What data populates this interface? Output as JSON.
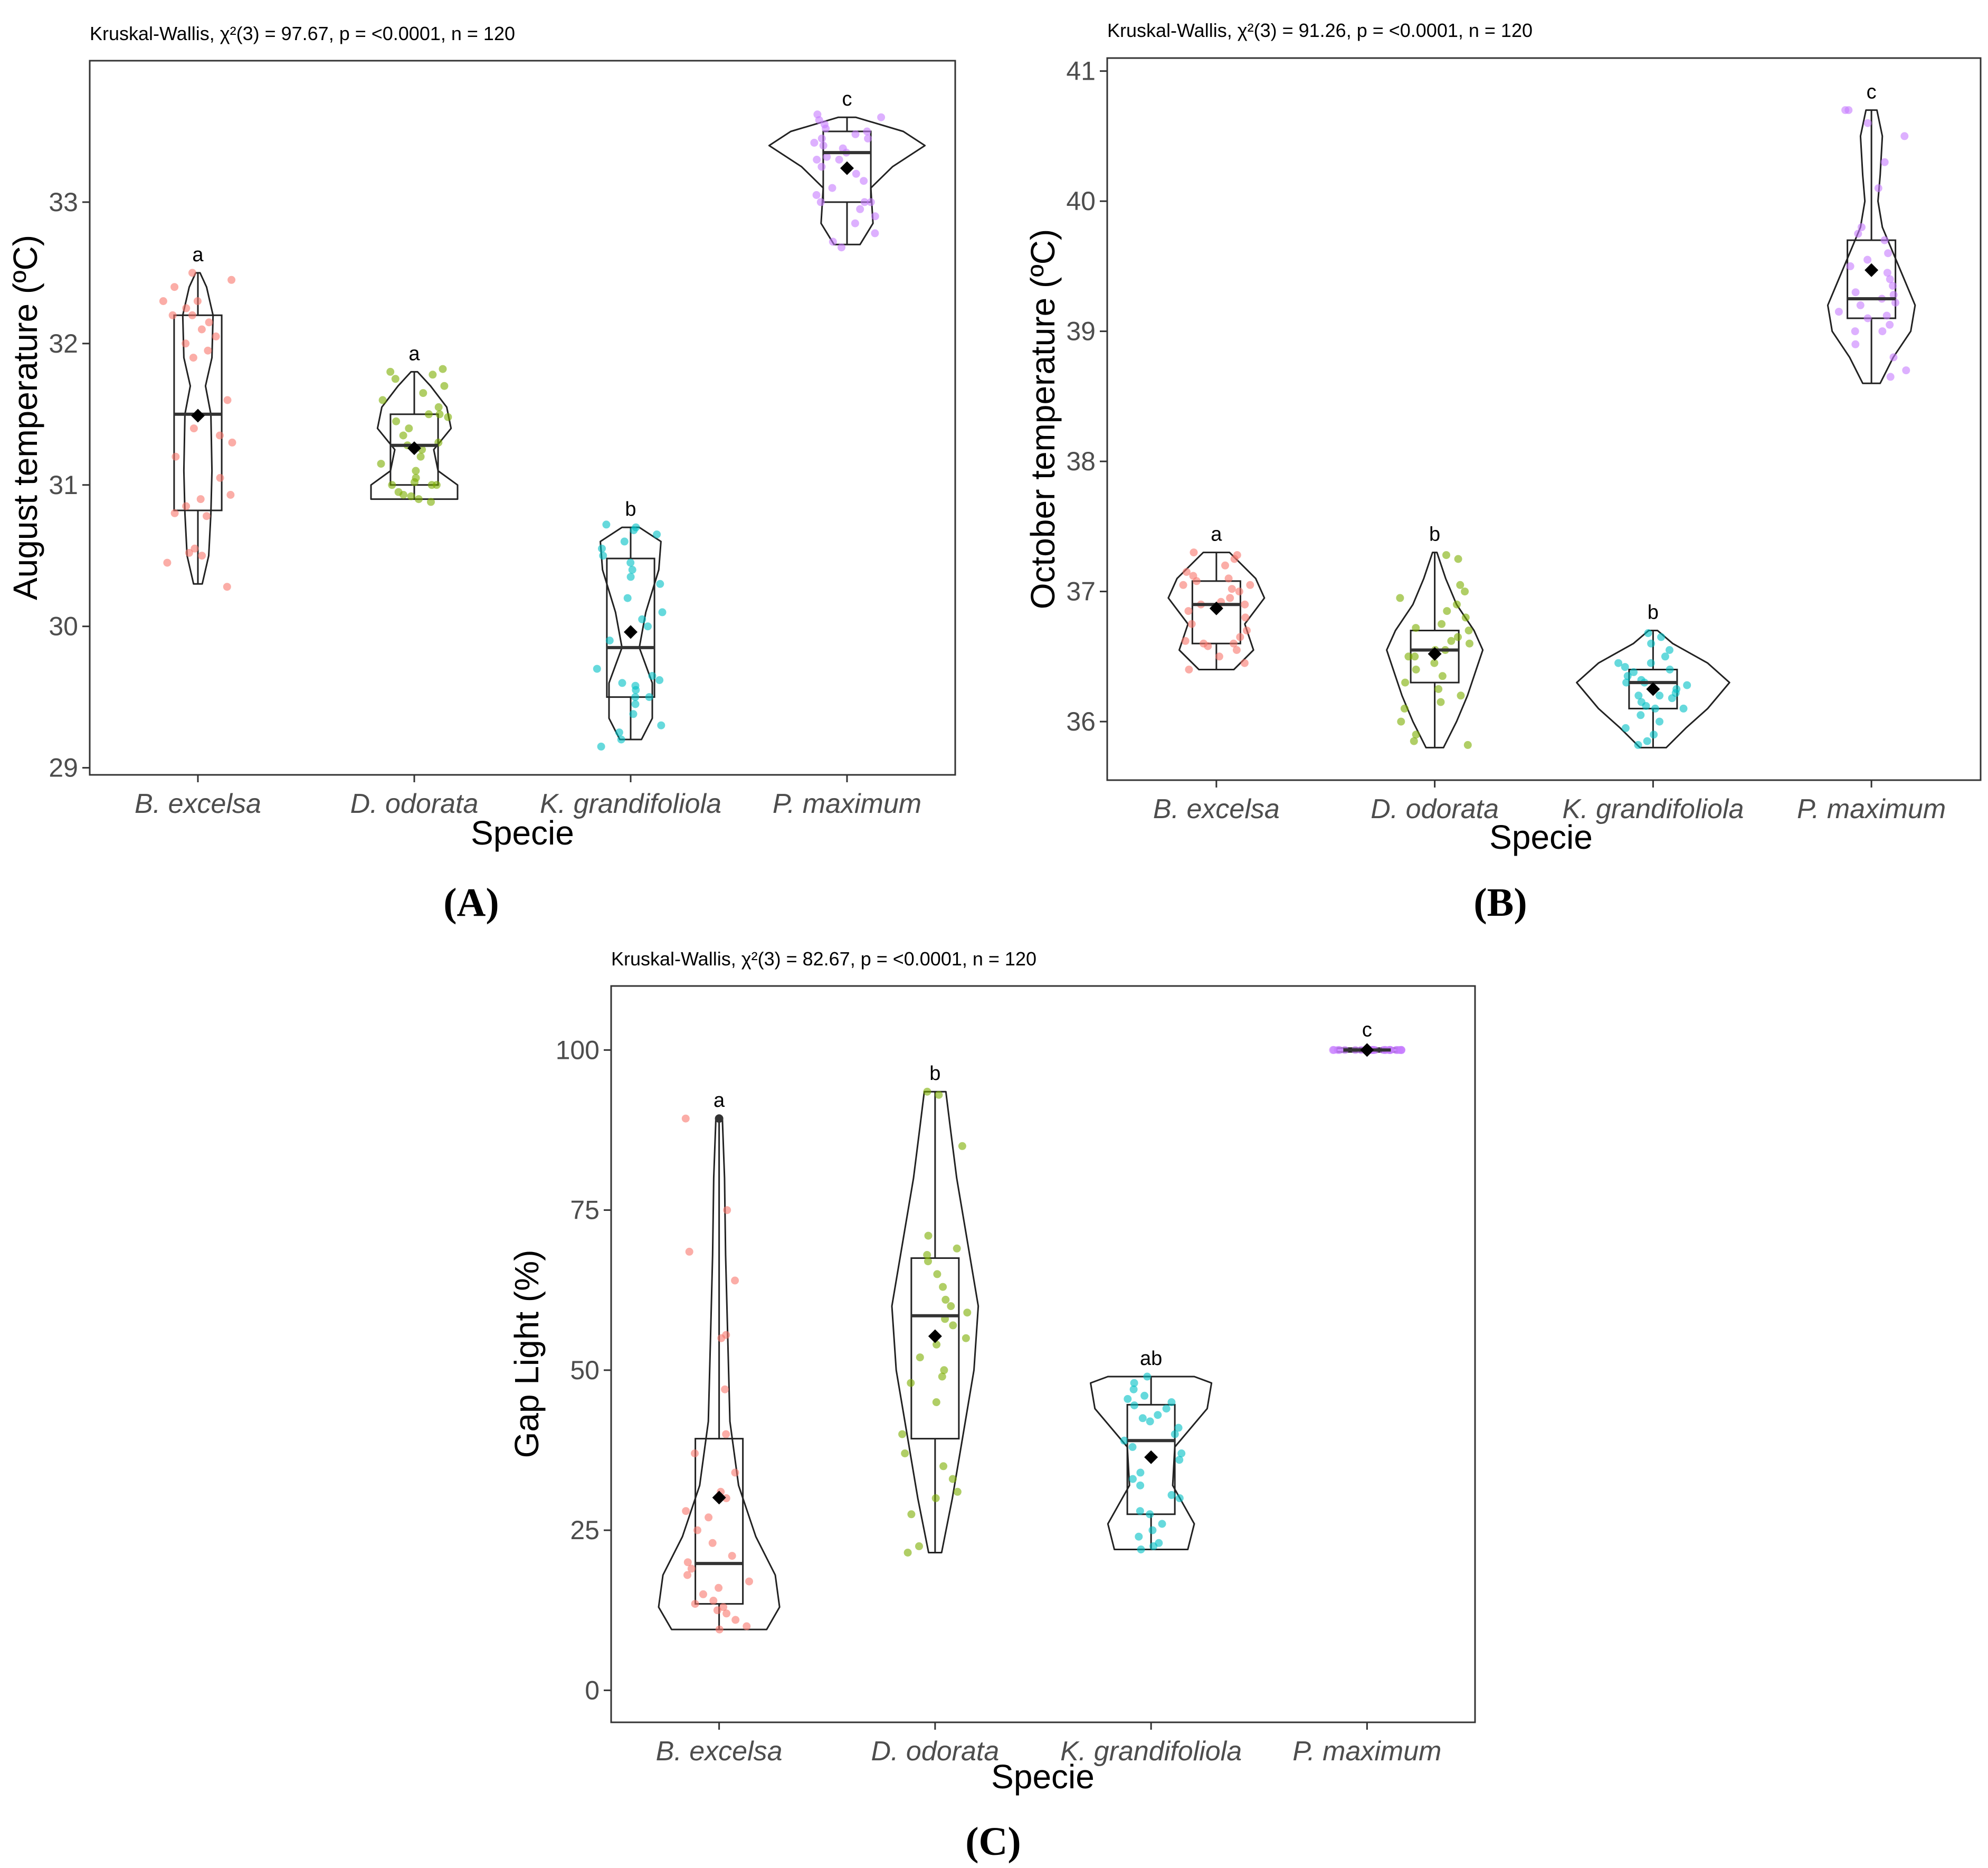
{
  "figure": {
    "panels": [
      {
        "id": "A",
        "label": "(A)"
      },
      {
        "id": "B",
        "label": "(B)"
      },
      {
        "id": "C",
        "label": "(C)"
      }
    ]
  },
  "colors": {
    "B. excelsa": "#F8766D",
    "D. odorata": "#7CAE00",
    "K. grandifoliola": "#00BFC4",
    "P. maximum": "#C77CFF",
    "box": "#333333",
    "mean": "#000000"
  },
  "chart_data": [
    {
      "id": "A",
      "type": "violin",
      "title": "Kruskal-Wallis, χ²(3) = 97.67, p = <0.0001, n = 120",
      "xlabel": "Specie",
      "ylabel": "August temperature (ºC)",
      "ylim": [
        28.95,
        34.0
      ],
      "yticks": [
        29,
        30,
        31,
        32,
        33
      ],
      "categories": [
        "B. excelsa",
        "D. odorata",
        "K. grandifoliola",
        "P. maximum"
      ],
      "series": [
        {
          "name": "B. excelsa",
          "letter": "a",
          "min": 30.3,
          "q1": 30.82,
          "median": 31.5,
          "q3": 32.2,
          "max": 32.5,
          "mean": 31.49,
          "violin": [
            [
              30.3,
              0.04
            ],
            [
              30.5,
              0.1
            ],
            [
              30.8,
              0.12
            ],
            [
              31.1,
              0.13
            ],
            [
              31.5,
              0.12
            ],
            [
              31.7,
              0.07
            ],
            [
              31.9,
              0.13
            ],
            [
              32.2,
              0.14
            ],
            [
              32.4,
              0.08
            ],
            [
              32.5,
              0.02
            ]
          ],
          "points": [
            30.28,
            30.45,
            30.5,
            30.52,
            30.55,
            30.78,
            30.8,
            30.85,
            30.9,
            30.93,
            31.05,
            31.2,
            31.3,
            31.35,
            31.4,
            31.6,
            31.9,
            31.95,
            32.0,
            32.05,
            32.1,
            32.15,
            32.2,
            32.2,
            32.25,
            32.3,
            32.3,
            32.4,
            32.5,
            32.45
          ]
        },
        {
          "name": "D. odorata",
          "letter": "a",
          "min": 30.9,
          "q1": 31.0,
          "median": 31.28,
          "q3": 31.5,
          "max": 31.8,
          "mean": 31.26,
          "violin": [
            [
              30.9,
              0.4
            ],
            [
              31.0,
              0.4
            ],
            [
              31.1,
              0.22
            ],
            [
              31.25,
              0.18
            ],
            [
              31.4,
              0.34
            ],
            [
              31.55,
              0.3
            ],
            [
              31.7,
              0.15
            ],
            [
              31.8,
              0.03
            ]
          ],
          "points": [
            30.88,
            30.9,
            30.92,
            30.95,
            31.0,
            31.0,
            31.02,
            31.05,
            31.1,
            31.15,
            31.2,
            31.25,
            31.28,
            31.3,
            31.35,
            31.4,
            31.45,
            31.48,
            31.5,
            31.5,
            31.55,
            31.6,
            31.65,
            31.7,
            31.75,
            31.78,
            31.8,
            31.82,
            31.0,
            30.93
          ]
        },
        {
          "name": "K. grandifoliola",
          "letter": "b",
          "min": 29.2,
          "q1": 29.5,
          "median": 29.85,
          "q3": 30.48,
          "max": 30.7,
          "mean": 29.96,
          "violin": [
            [
              29.2,
              0.1
            ],
            [
              29.35,
              0.2
            ],
            [
              29.6,
              0.2
            ],
            [
              29.85,
              0.08
            ],
            [
              30.1,
              0.14
            ],
            [
              30.4,
              0.26
            ],
            [
              30.6,
              0.28
            ],
            [
              30.7,
              0.08
            ]
          ],
          "points": [
            29.15,
            29.2,
            29.25,
            29.3,
            29.38,
            29.45,
            29.5,
            29.55,
            29.58,
            29.6,
            29.62,
            29.65,
            29.9,
            30.0,
            30.05,
            30.1,
            30.2,
            30.3,
            30.35,
            30.4,
            30.45,
            30.5,
            30.55,
            30.6,
            30.65,
            30.7,
            30.72,
            30.68,
            29.5,
            29.7
          ]
        },
        {
          "name": "P. maximum",
          "letter": "c",
          "min": 32.7,
          "q1": 33.0,
          "median": 33.35,
          "q3": 33.5,
          "max": 33.6,
          "mean": 33.24,
          "violin": [
            [
              32.7,
              0.12
            ],
            [
              32.85,
              0.24
            ],
            [
              33.1,
              0.22
            ],
            [
              33.25,
              0.42
            ],
            [
              33.4,
              0.72
            ],
            [
              33.5,
              0.52
            ],
            [
              33.6,
              0.08
            ]
          ],
          "points": [
            32.68,
            32.72,
            32.78,
            32.85,
            32.9,
            32.95,
            33.0,
            33.0,
            33.05,
            33.1,
            33.15,
            33.2,
            33.25,
            33.3,
            33.32,
            33.35,
            33.38,
            33.4,
            33.42,
            33.45,
            33.48,
            33.5,
            33.52,
            33.55,
            33.58,
            33.6,
            33.62,
            33.45,
            33.3,
            33.0
          ]
        }
      ]
    },
    {
      "id": "B",
      "type": "violin",
      "title": "Kruskal-Wallis, χ²(3) = 91.26, p = <0.0001, n = 120",
      "xlabel": "Specie",
      "ylabel": "October temperature (ºC)",
      "ylim": [
        35.55,
        41.1
      ],
      "yticks": [
        36,
        37,
        38,
        39,
        40,
        41
      ],
      "categories": [
        "B. excelsa",
        "D. odorata",
        "K. grandifoliola",
        "P. maximum"
      ],
      "series": [
        {
          "name": "B. excelsa",
          "letter": "a",
          "min": 36.4,
          "q1": 36.6,
          "median": 36.9,
          "q3": 37.08,
          "max": 37.3,
          "mean": 36.87,
          "violin": [
            [
              36.4,
              0.16
            ],
            [
              36.55,
              0.34
            ],
            [
              36.75,
              0.26
            ],
            [
              36.95,
              0.44
            ],
            [
              37.1,
              0.36
            ],
            [
              37.3,
              0.12
            ]
          ],
          "points": [
            36.4,
            36.45,
            36.5,
            36.55,
            36.58,
            36.6,
            36.62,
            36.65,
            36.7,
            36.75,
            36.8,
            36.85,
            36.88,
            36.9,
            36.92,
            36.95,
            37.0,
            37.02,
            37.05,
            37.08,
            37.1,
            37.12,
            37.15,
            37.2,
            37.25,
            37.28,
            37.3,
            36.6,
            36.9,
            37.05
          ]
        },
        {
          "name": "D. odorata",
          "letter": "b",
          "min": 35.8,
          "q1": 36.3,
          "median": 36.55,
          "q3": 36.7,
          "max": 37.3,
          "mean": 36.52,
          "violin": [
            [
              35.8,
              0.08
            ],
            [
              36.0,
              0.2
            ],
            [
              36.2,
              0.3
            ],
            [
              36.4,
              0.38
            ],
            [
              36.55,
              0.44
            ],
            [
              36.7,
              0.36
            ],
            [
              36.9,
              0.2
            ],
            [
              37.1,
              0.1
            ],
            [
              37.3,
              0.02
            ]
          ],
          "points": [
            35.82,
            35.85,
            35.9,
            36.0,
            36.1,
            36.15,
            36.2,
            36.25,
            36.3,
            36.35,
            36.4,
            36.45,
            36.5,
            36.5,
            36.55,
            36.55,
            36.6,
            36.62,
            36.65,
            36.7,
            36.72,
            36.75,
            36.8,
            36.85,
            36.9,
            36.95,
            37.0,
            37.05,
            37.25,
            37.28
          ]
        },
        {
          "name": "K. grandifoliola",
          "letter": "b",
          "min": 35.8,
          "q1": 36.1,
          "median": 36.3,
          "q3": 36.4,
          "max": 36.7,
          "mean": 36.25,
          "violin": [
            [
              35.8,
              0.12
            ],
            [
              35.95,
              0.3
            ],
            [
              36.1,
              0.5
            ],
            [
              36.3,
              0.7
            ],
            [
              36.45,
              0.5
            ],
            [
              36.6,
              0.18
            ],
            [
              36.7,
              0.04
            ]
          ],
          "points": [
            35.82,
            35.85,
            35.9,
            35.95,
            36.0,
            36.05,
            36.1,
            36.12,
            36.15,
            36.18,
            36.2,
            36.22,
            36.25,
            36.28,
            36.3,
            36.32,
            36.35,
            36.38,
            36.4,
            36.42,
            36.45,
            36.5,
            36.55,
            36.6,
            36.65,
            36.68,
            36.2,
            36.3,
            36.1,
            36.45
          ]
        },
        {
          "name": "P. maximum",
          "letter": "c",
          "min": 38.6,
          "q1": 39.1,
          "median": 39.25,
          "q3": 39.7,
          "max": 40.7,
          "mean": 39.47,
          "violin": [
            [
              38.6,
              0.08
            ],
            [
              38.8,
              0.2
            ],
            [
              39.0,
              0.36
            ],
            [
              39.2,
              0.4
            ],
            [
              39.4,
              0.3
            ],
            [
              39.6,
              0.2
            ],
            [
              39.8,
              0.1
            ],
            [
              40.0,
              0.06
            ],
            [
              40.2,
              0.08
            ],
            [
              40.5,
              0.1
            ],
            [
              40.7,
              0.05
            ]
          ],
          "points": [
            38.65,
            38.7,
            38.8,
            38.9,
            39.0,
            39.05,
            39.1,
            39.12,
            39.15,
            39.2,
            39.22,
            39.25,
            39.28,
            39.3,
            39.35,
            39.4,
            39.45,
            39.5,
            39.55,
            39.6,
            39.7,
            39.75,
            39.8,
            40.1,
            40.3,
            40.5,
            40.6,
            40.7,
            40.7,
            39.0
          ]
        }
      ]
    },
    {
      "id": "C",
      "type": "violin",
      "title": "Kruskal-Wallis, χ²(3) = 82.67, p = <0.0001, n = 120",
      "xlabel": "Specie",
      "ylabel": "Gap Light (%)",
      "ylim": [
        -5,
        110
      ],
      "yticks": [
        0,
        25,
        50,
        75,
        100
      ],
      "categories": [
        "B. excelsa",
        "D. odorata",
        "K. grandifoliola",
        "P. maximum"
      ],
      "series": [
        {
          "name": "B. excelsa",
          "letter": "a",
          "min": 9.5,
          "q1": 13.5,
          "median": 19.8,
          "q3": 39.3,
          "max": 89.3,
          "mean": 30.1,
          "violin": [
            [
              9.5,
              0.44
            ],
            [
              13,
              0.56
            ],
            [
              18,
              0.52
            ],
            [
              24,
              0.34
            ],
            [
              32,
              0.18
            ],
            [
              42,
              0.1
            ],
            [
              55,
              0.08
            ],
            [
              68,
              0.06
            ],
            [
              80,
              0.05
            ],
            [
              89.3,
              0.03
            ]
          ],
          "outliers": [
            89.3
          ],
          "points": [
            9.5,
            10,
            11,
            12,
            12.5,
            13,
            13.5,
            14,
            15,
            16,
            17,
            18,
            19,
            20,
            21,
            23,
            25,
            27,
            28,
            30,
            31,
            34,
            37,
            40,
            47,
            55,
            55.5,
            64,
            68.5,
            75,
            89.3
          ]
        },
        {
          "name": "D. odorata",
          "letter": "b",
          "min": 21.5,
          "q1": 39.3,
          "median": 58.5,
          "q3": 67.5,
          "max": 93.5,
          "mean": 55.3,
          "violin": [
            [
              21.5,
              0.06
            ],
            [
              30,
              0.16
            ],
            [
              40,
              0.26
            ],
            [
              50,
              0.36
            ],
            [
              60,
              0.4
            ],
            [
              70,
              0.3
            ],
            [
              80,
              0.2
            ],
            [
              88,
              0.14
            ],
            [
              93.5,
              0.1
            ]
          ],
          "points": [
            21.5,
            22.5,
            27.5,
            30,
            33,
            35,
            37,
            40,
            45,
            48,
            49,
            50,
            52,
            54,
            55,
            57,
            58,
            59,
            60,
            61,
            63,
            65,
            67,
            68,
            69,
            71,
            85,
            93,
            93.5,
            31
          ]
        },
        {
          "name": "K. grandifoliola",
          "letter": "ab",
          "min": 22,
          "q1": 27.5,
          "median": 39,
          "q3": 44.6,
          "max": 49,
          "mean": 36.4,
          "violin": [
            [
              22,
              0.34
            ],
            [
              26,
              0.4
            ],
            [
              32,
              0.2
            ],
            [
              38,
              0.22
            ],
            [
              44,
              0.52
            ],
            [
              48,
              0.56
            ],
            [
              49,
              0.4
            ]
          ],
          "points": [
            22,
            22.5,
            23,
            24,
            25,
            26,
            27.5,
            28,
            30,
            32,
            33,
            34,
            36,
            37,
            38,
            39,
            40,
            41,
            42,
            43,
            44,
            44.5,
            45,
            45.5,
            46,
            47,
            48,
            49,
            30.5,
            42.5
          ]
        },
        {
          "name": "P. maximum",
          "letter": "c",
          "min": 100,
          "q1": 100,
          "median": 100,
          "q3": 100,
          "max": 100,
          "mean": 100,
          "violin": [
            [
              99.7,
              0.28
            ],
            [
              100,
              0.28
            ],
            [
              100.3,
              0.28
            ]
          ],
          "points": [
            100,
            100,
            100,
            100,
            100,
            100,
            100,
            100,
            100,
            100,
            100,
            100,
            100,
            100,
            100,
            100,
            100,
            100,
            100,
            100,
            100,
            100,
            100,
            100,
            100,
            100,
            100,
            100,
            100,
            100
          ]
        }
      ]
    }
  ]
}
